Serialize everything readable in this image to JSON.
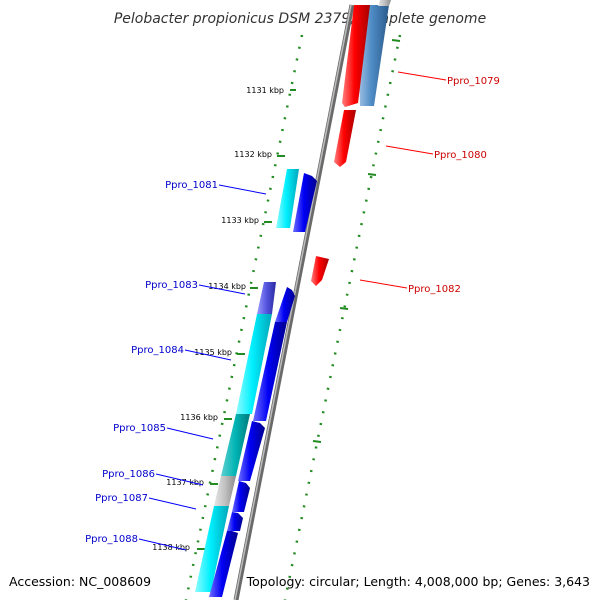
{
  "title": "Pelobacter propionicus DSM 2379, complete genome",
  "footer": {
    "accession": "Accession: NC_008609",
    "summary": "Topology: circular; Length: 4,008,000 bp; Genes: 3,643"
  },
  "ticks": [
    "1131 kbp",
    "1132 kbp",
    "1133 kbp",
    "1134 kbp",
    "1135 kbp",
    "1136 kbp",
    "1137 kbp",
    "1138 kbp"
  ],
  "genes": [
    {
      "label": "Ppro_1079",
      "strand": "forward"
    },
    {
      "label": "Ppro_1080",
      "strand": "forward"
    },
    {
      "label": "Ppro_1081",
      "strand": "reverse"
    },
    {
      "label": "Ppro_1082",
      "strand": "forward"
    },
    {
      "label": "Ppro_1083",
      "strand": "reverse"
    },
    {
      "label": "Ppro_1084",
      "strand": "reverse"
    },
    {
      "label": "Ppro_1085",
      "strand": "reverse"
    },
    {
      "label": "Ppro_1086",
      "strand": "reverse"
    },
    {
      "label": "Ppro_1087",
      "strand": "reverse"
    },
    {
      "label": "Ppro_1088",
      "strand": "reverse"
    }
  ],
  "colors": {
    "forward_gene": "#ff0000",
    "forward_label": "#cc0000",
    "reverse_gene": "#0000ff",
    "reverse_label": "#0000cc",
    "cds_feature": "#00ffff",
    "rna_feature": "#4682b4",
    "backbone": "#808080",
    "tick_dots": "#228b22"
  }
}
